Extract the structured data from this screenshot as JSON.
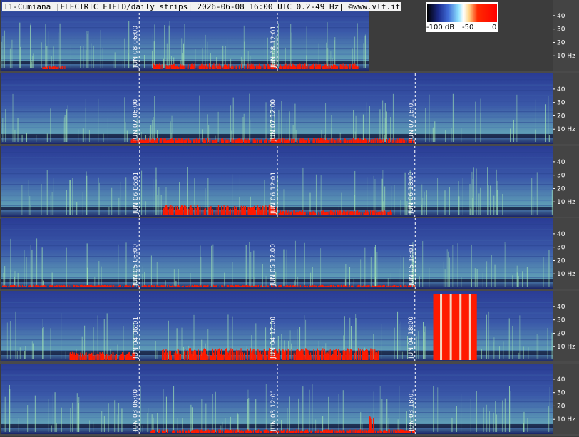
{
  "header": {
    "title": "I1-Cumiana |ELECTRIC FIELD/daily strips| 2026-06-08 16:00 UTC 0.2-49 Hz| ©www.vlf.it"
  },
  "colors": {
    "background": "#3c3c3c",
    "page_background_top_right": "#444444",
    "axis_tick": "#ffffff",
    "hour_marker": "#ffffff",
    "spectrogram_low": "#2c3a8c",
    "spectrogram_mid": "#9ce0b0",
    "spectrogram_high": "#ff1a00"
  },
  "colorbar": {
    "labels": [
      "-100 dB",
      "-50",
      "0"
    ],
    "stops": [
      "#000000",
      "#1b2a8a",
      "#3f6bd6",
      "#8fe3ff",
      "#ffffff",
      "#ffd68a",
      "#ff2a00",
      "#ff0000"
    ]
  },
  "chart_data": {
    "type": "heatmap",
    "title": "I1-Cumiana |ELECTRIC FIELD/daily strips| 2026-06-08 16:00 UTC 0.2-49 Hz| ©www.vlf.it",
    "xlabel": "",
    "ylabel": "",
    "ylim": [
      0,
      49
    ],
    "y_tick_labels": [
      "40",
      "30",
      "20",
      "10 Hz"
    ],
    "y_tick_values": [
      40,
      30,
      20,
      10
    ],
    "x_hours_range": [
      0,
      24
    ],
    "strips": [
      {
        "date": "2026-06-08",
        "end_hour": 16.0,
        "markers": [
          {
            "hour": 6.0,
            "label": "JUN 08  06:00"
          },
          {
            "hour": 12.0167,
            "label": "JUN 08  12:01"
          }
        ],
        "events": [
          {
            "from_hour": 1.8,
            "to_hour": 2.8,
            "max_hz": 4,
            "intensity": 0.5
          },
          {
            "from_hour": 6.6,
            "to_hour": 15.6,
            "max_hz": 6,
            "intensity": 0.6
          }
        ]
      },
      {
        "date": "2026-06-07",
        "end_hour": 24.0,
        "markers": [
          {
            "hour": 6.0,
            "label": "JUN 07  06:00"
          },
          {
            "hour": 12.0,
            "label": "JUN 07  12:00"
          },
          {
            "hour": 18.0167,
            "label": "JUN 07  18:01"
          }
        ],
        "events": [
          {
            "from_hour": 5.6,
            "to_hour": 18.0,
            "max_hz": 5,
            "intensity": 0.55
          }
        ]
      },
      {
        "date": "2026-06-06",
        "end_hour": 24.0,
        "markers": [
          {
            "hour": 6.0167,
            "label": "JUN 06  06:01"
          },
          {
            "hour": 12.0167,
            "label": "JUN 06  12:01"
          },
          {
            "hour": 18.0,
            "label": "JUN 06  18:00"
          }
        ],
        "events": [
          {
            "from_hour": 7.0,
            "to_hour": 12.0,
            "max_hz": 9,
            "intensity": 0.85
          },
          {
            "from_hour": 12.0,
            "to_hour": 17.0,
            "max_hz": 6,
            "intensity": 0.55
          }
        ]
      },
      {
        "date": "2026-06-05",
        "end_hour": 24.0,
        "markers": [
          {
            "hour": 6.0,
            "label": "JUN 05  06:00"
          },
          {
            "hour": 12.0,
            "label": "JUN 05  12:00"
          },
          {
            "hour": 18.0167,
            "label": "JUN 05  18:01"
          }
        ],
        "events": [
          {
            "from_hour": 0.0,
            "to_hour": 18.0,
            "max_hz": 3,
            "intensity": 0.4
          }
        ]
      },
      {
        "date": "2026-06-04",
        "end_hour": 24.0,
        "markers": [
          {
            "hour": 6.0167,
            "label": "JUN 04  06:01"
          },
          {
            "hour": 12.0,
            "label": "JUN 04  12:00"
          },
          {
            "hour": 18.0,
            "label": "JUN 04  18:00"
          }
        ],
        "events": [
          {
            "from_hour": 2.8,
            "to_hour": 5.8,
            "max_hz": 8,
            "intensity": 0.7
          },
          {
            "from_hour": 7.0,
            "to_hour": 16.5,
            "max_hz": 10,
            "intensity": 0.85
          },
          {
            "from_hour": 18.8,
            "to_hour": 20.7,
            "max_hz": 49,
            "intensity": 1.0
          }
        ]
      },
      {
        "date": "2026-06-03",
        "end_hour": 24.0,
        "markers": [
          {
            "hour": 6.0,
            "label": "JUN 03  06:00"
          },
          {
            "hour": 12.0167,
            "label": "JUN 03  12:01"
          },
          {
            "hour": 18.0167,
            "label": "JUN 03  18:01"
          }
        ],
        "events": [
          {
            "from_hour": 6.5,
            "to_hour": 18.0,
            "max_hz": 4,
            "intensity": 0.5
          },
          {
            "from_hour": 16.0,
            "to_hour": 16.2,
            "max_hz": 20,
            "intensity": 0.7
          }
        ]
      }
    ]
  }
}
